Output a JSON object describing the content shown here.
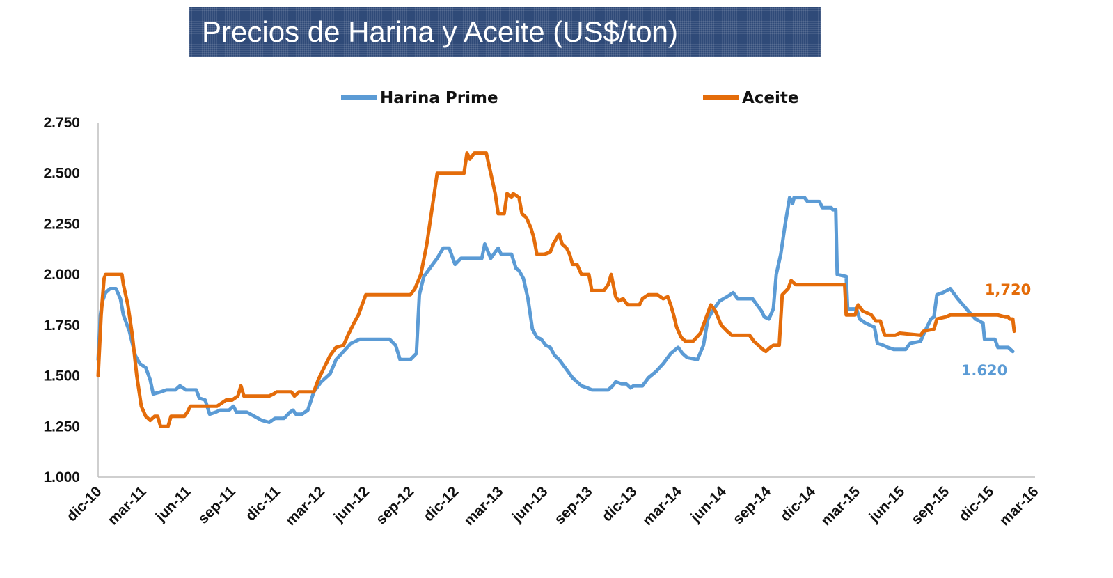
{
  "chart_data": {
    "type": "line",
    "title": "Precios de Harina y Aceite (US$/ton)",
    "xlabel": "",
    "ylabel": "",
    "ylim": [
      1000,
      2750
    ],
    "y_ticks": [
      "1.000",
      "1.250",
      "1.500",
      "1.750",
      "2.000",
      "2.250",
      "2.500",
      "2.750"
    ],
    "x_ticks": [
      "dic-10",
      "mar-11",
      "jun-11",
      "sep-11",
      "dic-11",
      "mar-12",
      "jun-12",
      "sep-12",
      "dic-12",
      "mar-13",
      "jun-13",
      "sep-13",
      "dic-13",
      "mar-14",
      "jun-14",
      "sep-14",
      "dic-14",
      "mar-15",
      "jun-15",
      "sep-15",
      "dic-15",
      "mar-16"
    ],
    "x_unit": "months since dic-10 (tick labels every 3 months)",
    "legend_position": "top",
    "grid": false,
    "series": [
      {
        "name": "Harina Prime",
        "color": "#5b9bd5",
        "end_label": "1.620",
        "points": [
          [
            0,
            1580
          ],
          [
            0.15,
            1800
          ],
          [
            0.3,
            1870
          ],
          [
            0.5,
            1910
          ],
          [
            0.8,
            1930
          ],
          [
            1.2,
            1930
          ],
          [
            1.5,
            1880
          ],
          [
            1.7,
            1800
          ],
          [
            2.1,
            1720
          ],
          [
            2.5,
            1600
          ],
          [
            2.8,
            1560
          ],
          [
            3.2,
            1540
          ],
          [
            3.5,
            1480
          ],
          [
            3.7,
            1410
          ],
          [
            4.2,
            1420
          ],
          [
            4.6,
            1430
          ],
          [
            5.2,
            1430
          ],
          [
            5.5,
            1450
          ],
          [
            5.9,
            1430
          ],
          [
            6.6,
            1430
          ],
          [
            6.8,
            1390
          ],
          [
            7.2,
            1380
          ],
          [
            7.5,
            1310
          ],
          [
            7.9,
            1320
          ],
          [
            8.2,
            1330
          ],
          [
            8.8,
            1330
          ],
          [
            9.1,
            1350
          ],
          [
            9.3,
            1320
          ],
          [
            10.0,
            1320
          ],
          [
            10.5,
            1300
          ],
          [
            11.0,
            1280
          ],
          [
            11.5,
            1270
          ],
          [
            11.9,
            1290
          ],
          [
            12.5,
            1290
          ],
          [
            12.9,
            1320
          ],
          [
            13.1,
            1330
          ],
          [
            13.3,
            1310
          ],
          [
            13.7,
            1310
          ],
          [
            14.1,
            1330
          ],
          [
            14.5,
            1420
          ],
          [
            15.0,
            1470
          ],
          [
            15.6,
            1510
          ],
          [
            16.0,
            1580
          ],
          [
            16.5,
            1620
          ],
          [
            17.0,
            1660
          ],
          [
            17.6,
            1680
          ],
          [
            19.6,
            1680
          ],
          [
            20.0,
            1650
          ],
          [
            20.3,
            1580
          ],
          [
            21.0,
            1580
          ],
          [
            21.4,
            1610
          ],
          [
            21.6,
            1900
          ],
          [
            21.9,
            1990
          ],
          [
            22.3,
            2030
          ],
          [
            22.8,
            2080
          ],
          [
            23.2,
            2130
          ],
          [
            23.6,
            2130
          ],
          [
            24.0,
            2050
          ],
          [
            24.4,
            2080
          ],
          [
            25.8,
            2080
          ],
          [
            26.0,
            2150
          ],
          [
            26.4,
            2080
          ],
          [
            26.9,
            2130
          ],
          [
            27.1,
            2100
          ],
          [
            27.8,
            2100
          ],
          [
            28.1,
            2030
          ],
          [
            28.3,
            2020
          ],
          [
            28.6,
            1980
          ],
          [
            28.9,
            1880
          ],
          [
            29.2,
            1730
          ],
          [
            29.5,
            1690
          ],
          [
            29.8,
            1680
          ],
          [
            30.1,
            1650
          ],
          [
            30.4,
            1640
          ],
          [
            30.7,
            1600
          ],
          [
            31.0,
            1580
          ],
          [
            31.5,
            1530
          ],
          [
            31.9,
            1490
          ],
          [
            32.2,
            1470
          ],
          [
            32.5,
            1450
          ],
          [
            32.9,
            1440
          ],
          [
            33.2,
            1430
          ],
          [
            34.3,
            1430
          ],
          [
            34.6,
            1450
          ],
          [
            34.8,
            1470
          ],
          [
            35.2,
            1460
          ],
          [
            35.5,
            1460
          ],
          [
            35.8,
            1440
          ],
          [
            36.0,
            1450
          ],
          [
            36.6,
            1450
          ],
          [
            37.0,
            1490
          ],
          [
            37.5,
            1520
          ],
          [
            38.0,
            1560
          ],
          [
            38.5,
            1610
          ],
          [
            39.0,
            1640
          ],
          [
            39.3,
            1610
          ],
          [
            39.6,
            1590
          ],
          [
            40.3,
            1580
          ],
          [
            40.7,
            1650
          ],
          [
            41.0,
            1780
          ],
          [
            41.4,
            1830
          ],
          [
            41.8,
            1870
          ],
          [
            42.3,
            1890
          ],
          [
            42.7,
            1910
          ],
          [
            43.0,
            1880
          ],
          [
            44.0,
            1880
          ],
          [
            44.3,
            1850
          ],
          [
            44.6,
            1820
          ],
          [
            44.8,
            1790
          ],
          [
            45.1,
            1780
          ],
          [
            45.4,
            1830
          ],
          [
            45.6,
            2000
          ],
          [
            45.9,
            2100
          ],
          [
            46.2,
            2250
          ],
          [
            46.5,
            2380
          ],
          [
            46.7,
            2350
          ],
          [
            46.8,
            2380
          ],
          [
            47.5,
            2380
          ],
          [
            47.7,
            2360
          ],
          [
            48.5,
            2360
          ],
          [
            48.7,
            2330
          ],
          [
            49.3,
            2330
          ],
          [
            49.4,
            2320
          ],
          [
            49.6,
            2320
          ],
          [
            49.7,
            2000
          ],
          [
            50.3,
            1990
          ],
          [
            50.4,
            1830
          ],
          [
            51.0,
            1830
          ],
          [
            51.2,
            1780
          ],
          [
            51.6,
            1760
          ],
          [
            51.9,
            1750
          ],
          [
            52.2,
            1740
          ],
          [
            52.4,
            1660
          ],
          [
            52.8,
            1650
          ],
          [
            53.1,
            1640
          ],
          [
            53.5,
            1630
          ],
          [
            54.3,
            1630
          ],
          [
            54.6,
            1660
          ],
          [
            55.3,
            1670
          ],
          [
            55.6,
            1720
          ],
          [
            56.0,
            1780
          ],
          [
            56.2,
            1790
          ],
          [
            56.4,
            1900
          ],
          [
            56.8,
            1910
          ],
          [
            57.3,
            1930
          ],
          [
            57.8,
            1880
          ],
          [
            58.5,
            1820
          ],
          [
            59.0,
            1780
          ],
          [
            59.5,
            1760
          ],
          [
            59.6,
            1680
          ],
          [
            60.3,
            1680
          ],
          [
            60.5,
            1640
          ],
          [
            61.2,
            1640
          ],
          [
            61.5,
            1620
          ]
        ]
      },
      {
        "name": "Aceite",
        "color": "#e46c0a",
        "end_label": "1,720",
        "points": [
          [
            0,
            1500
          ],
          [
            0.2,
            1800
          ],
          [
            0.4,
            1980
          ],
          [
            0.5,
            2000
          ],
          [
            1.6,
            2000
          ],
          [
            1.7,
            1950
          ],
          [
            2.0,
            1850
          ],
          [
            2.3,
            1700
          ],
          [
            2.6,
            1500
          ],
          [
            2.9,
            1350
          ],
          [
            3.2,
            1300
          ],
          [
            3.5,
            1280
          ],
          [
            3.8,
            1300
          ],
          [
            4.0,
            1300
          ],
          [
            4.2,
            1250
          ],
          [
            4.7,
            1250
          ],
          [
            4.9,
            1300
          ],
          [
            5.8,
            1300
          ],
          [
            6.0,
            1320
          ],
          [
            6.2,
            1350
          ],
          [
            8.0,
            1350
          ],
          [
            8.4,
            1370
          ],
          [
            8.6,
            1380
          ],
          [
            9.0,
            1380
          ],
          [
            9.4,
            1400
          ],
          [
            9.6,
            1450
          ],
          [
            9.8,
            1400
          ],
          [
            11.5,
            1400
          ],
          [
            11.8,
            1410
          ],
          [
            12.0,
            1420
          ],
          [
            13.0,
            1420
          ],
          [
            13.2,
            1400
          ],
          [
            13.5,
            1420
          ],
          [
            14.5,
            1420
          ],
          [
            14.8,
            1480
          ],
          [
            15.2,
            1540
          ],
          [
            15.6,
            1600
          ],
          [
            16.0,
            1640
          ],
          [
            16.5,
            1650
          ],
          [
            16.8,
            1700
          ],
          [
            17.2,
            1760
          ],
          [
            17.5,
            1800
          ],
          [
            17.8,
            1860
          ],
          [
            18.0,
            1900
          ],
          [
            21.0,
            1900
          ],
          [
            21.3,
            1930
          ],
          [
            21.7,
            2000
          ],
          [
            22.1,
            2150
          ],
          [
            22.4,
            2300
          ],
          [
            22.6,
            2400
          ],
          [
            22.8,
            2500
          ],
          [
            24.6,
            2500
          ],
          [
            24.8,
            2600
          ],
          [
            25.0,
            2570
          ],
          [
            25.3,
            2600
          ],
          [
            26.1,
            2600
          ],
          [
            26.4,
            2500
          ],
          [
            26.7,
            2400
          ],
          [
            26.9,
            2300
          ],
          [
            27.3,
            2300
          ],
          [
            27.5,
            2400
          ],
          [
            27.8,
            2380
          ],
          [
            27.9,
            2400
          ],
          [
            28.3,
            2380
          ],
          [
            28.5,
            2300
          ],
          [
            28.8,
            2280
          ],
          [
            29.1,
            2230
          ],
          [
            29.3,
            2180
          ],
          [
            29.5,
            2100
          ],
          [
            30.0,
            2100
          ],
          [
            30.4,
            2110
          ],
          [
            30.6,
            2150
          ],
          [
            31.0,
            2200
          ],
          [
            31.2,
            2150
          ],
          [
            31.5,
            2130
          ],
          [
            31.7,
            2100
          ],
          [
            31.9,
            2050
          ],
          [
            32.2,
            2050
          ],
          [
            32.5,
            2000
          ],
          [
            33.0,
            2000
          ],
          [
            33.2,
            1920
          ],
          [
            34.0,
            1920
          ],
          [
            34.3,
            1950
          ],
          [
            34.5,
            2000
          ],
          [
            34.8,
            1890
          ],
          [
            35.0,
            1870
          ],
          [
            35.3,
            1880
          ],
          [
            35.6,
            1850
          ],
          [
            36.4,
            1850
          ],
          [
            36.6,
            1880
          ],
          [
            37.0,
            1900
          ],
          [
            37.6,
            1900
          ],
          [
            38.0,
            1880
          ],
          [
            38.3,
            1890
          ],
          [
            38.5,
            1850
          ],
          [
            38.7,
            1800
          ],
          [
            38.9,
            1740
          ],
          [
            39.2,
            1690
          ],
          [
            39.5,
            1670
          ],
          [
            40.0,
            1670
          ],
          [
            40.5,
            1710
          ],
          [
            40.9,
            1790
          ],
          [
            41.2,
            1850
          ],
          [
            41.5,
            1820
          ],
          [
            41.9,
            1750
          ],
          [
            42.3,
            1720
          ],
          [
            42.6,
            1700
          ],
          [
            43.8,
            1700
          ],
          [
            44.1,
            1670
          ],
          [
            44.4,
            1650
          ],
          [
            44.7,
            1630
          ],
          [
            44.9,
            1620
          ],
          [
            45.2,
            1640
          ],
          [
            45.4,
            1650
          ],
          [
            45.8,
            1650
          ],
          [
            46.0,
            1900
          ],
          [
            46.4,
            1930
          ],
          [
            46.6,
            1970
          ],
          [
            46.9,
            1950
          ],
          [
            50.2,
            1950
          ],
          [
            50.3,
            1800
          ],
          [
            50.9,
            1800
          ],
          [
            51.1,
            1850
          ],
          [
            51.4,
            1820
          ],
          [
            52.0,
            1800
          ],
          [
            52.3,
            1770
          ],
          [
            52.6,
            1770
          ],
          [
            52.8,
            1720
          ],
          [
            52.9,
            1700
          ],
          [
            53.6,
            1700
          ],
          [
            53.9,
            1710
          ],
          [
            55.3,
            1700
          ],
          [
            55.5,
            1720
          ],
          [
            56.2,
            1730
          ],
          [
            56.4,
            1780
          ],
          [
            57.0,
            1790
          ],
          [
            57.3,
            1800
          ],
          [
            60.0,
            1800
          ],
          [
            60.3,
            1800
          ],
          [
            60.5,
            1800
          ],
          [
            61.0,
            1790
          ],
          [
            61.2,
            1790
          ],
          [
            61.3,
            1780
          ],
          [
            61.5,
            1780
          ],
          [
            61.6,
            1720
          ]
        ]
      }
    ]
  }
}
